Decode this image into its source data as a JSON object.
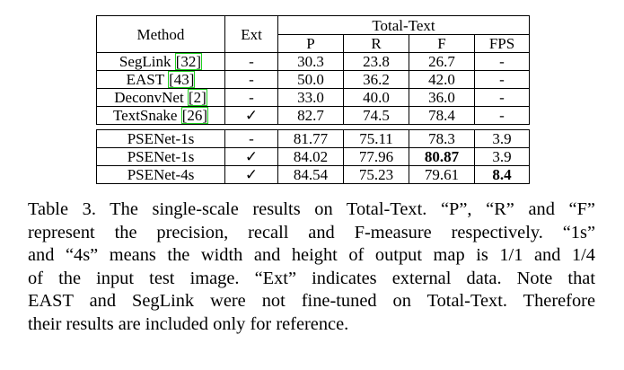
{
  "table": {
    "col_method": "Method",
    "col_ext": "Ext",
    "group_header": "Total-Text",
    "col_p": "P",
    "col_r": "R",
    "col_f": "F",
    "col_fps": "FPS",
    "rows_a": [
      {
        "method": "SegLink",
        "cite": "[32]",
        "ext": "-",
        "p": "30.3",
        "r": "23.8",
        "f": "26.7",
        "fps": "-"
      },
      {
        "method": "EAST",
        "cite": "[43]",
        "ext": "-",
        "p": "50.0",
        "r": "36.2",
        "f": "42.0",
        "fps": "-"
      },
      {
        "method": "DeconvNet",
        "cite": "[2]",
        "ext": "-",
        "p": "33.0",
        "r": "40.0",
        "f": "36.0",
        "fps": "-"
      },
      {
        "method": "TextSnake",
        "cite": "[26]",
        "ext": "✓",
        "p": "82.7",
        "r": "74.5",
        "f": "78.4",
        "fps": "-"
      }
    ],
    "rows_b": [
      {
        "method": "PSENet-1s",
        "ext": "-",
        "p": "81.77",
        "r": "75.11",
        "f": "78.3",
        "fps": "3.9"
      },
      {
        "method": "PSENet-1s",
        "ext": "✓",
        "p": "84.02",
        "r": "77.96",
        "f": "80.87",
        "fps": "3.9"
      },
      {
        "method": "PSENet-4s",
        "ext": "✓",
        "p": "84.54",
        "r": "75.23",
        "f": "79.61",
        "fps": "8.4"
      }
    ]
  },
  "caption": {
    "line1": "Table 3. The single-scale results on Total-Text. “P”, “R” and “F”",
    "line2": "represent the precision, recall and F-measure respectively. “1s”",
    "line3": "and “4s” means the width and height of output map is 1/1 and 1/4",
    "line4": "of the input test image. “Ext” indicates external data. Note that",
    "line5": "EAST and SegLink were not fine-tuned on Total-Text. Therefore",
    "line6": "their results are included only for reference."
  }
}
